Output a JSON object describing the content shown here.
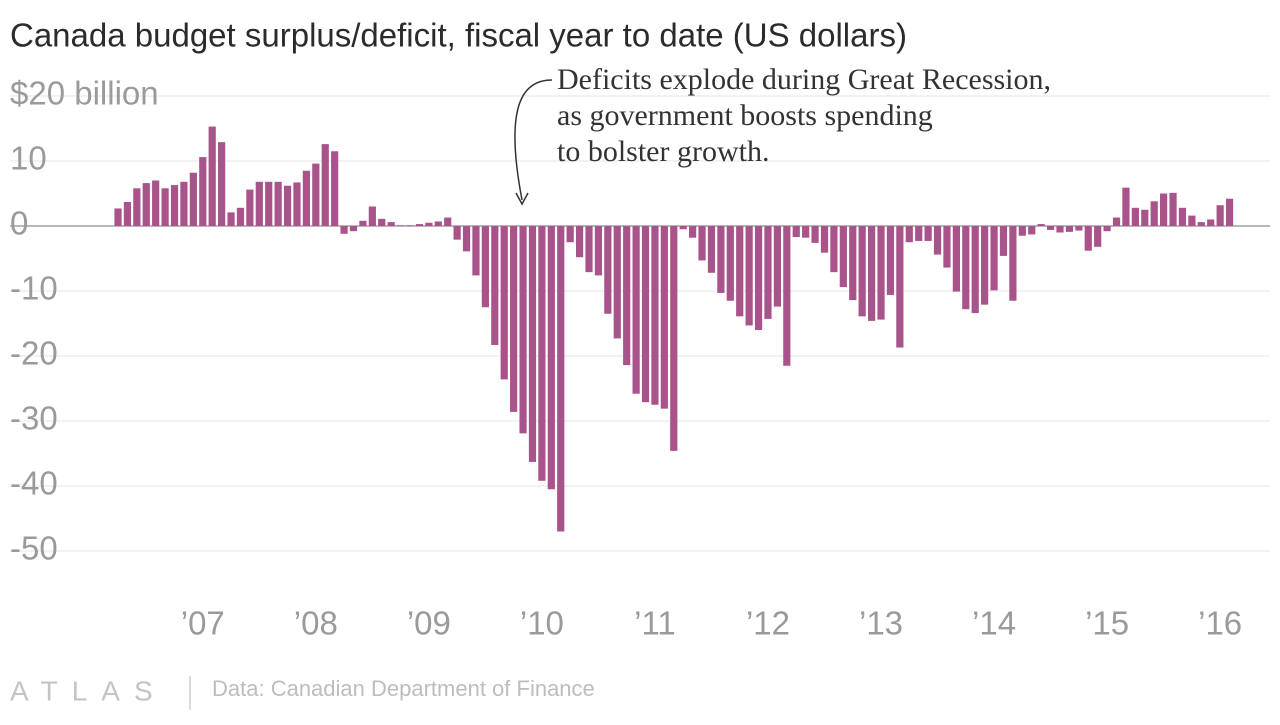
{
  "chart_data": {
    "type": "bar",
    "title": "Canada budget surplus/deficit, fiscal year to date (US dollars)",
    "annotation": [
      "Deficits explode during Great Recession,",
      "as government boosts spending",
      "to bolster growth."
    ],
    "source": "Data: Canadian Department of Finance",
    "logo": "ATLAS",
    "color": "#a9538b",
    "grid": true,
    "ylim": [
      -52,
      20
    ],
    "yticks": [
      {
        "value": 20,
        "label": "$20 billion"
      },
      10,
      0,
      -10,
      -20,
      -30,
      -40,
      -50
    ],
    "categories": [
      null,
      null,
      null,
      null,
      null,
      null,
      null,
      null,
      null,
      "’07",
      null,
      null,
      null,
      null,
      null,
      null,
      null,
      null,
      null,
      null,
      null,
      "’08",
      null,
      null,
      null,
      null,
      null,
      null,
      null,
      null,
      null,
      null,
      null,
      "’09",
      null,
      null,
      null,
      null,
      null,
      null,
      null,
      null,
      null,
      null,
      null,
      "’10",
      null,
      null,
      null,
      null,
      null,
      null,
      null,
      null,
      null,
      null,
      null,
      "’11",
      null,
      null,
      null,
      null,
      null,
      null,
      null,
      null,
      null,
      null,
      null,
      "’12",
      null,
      null,
      null,
      null,
      null,
      null,
      null,
      null,
      null,
      null,
      null,
      "’13",
      null,
      null,
      null,
      null,
      null,
      null,
      null,
      null,
      null,
      null,
      null,
      "’14",
      null,
      null,
      null,
      null,
      null,
      null,
      null,
      null,
      null,
      null,
      null,
      "’15",
      null,
      null,
      null,
      null,
      null,
      null,
      null,
      null,
      null,
      null,
      null,
      "’16",
      null
    ],
    "values": [
      2.7,
      3.7,
      5.8,
      6.6,
      7.0,
      5.8,
      6.3,
      6.8,
      8.2,
      10.6,
      15.3,
      12.9,
      2.1,
      2.8,
      5.6,
      6.8,
      6.8,
      6.8,
      6.2,
      6.7,
      8.5,
      9.6,
      12.6,
      11.5,
      -1.2,
      -0.8,
      0.8,
      3.0,
      1.1,
      0.6,
      0.1,
      0.1,
      0.3,
      0.5,
      0.7,
      1.3,
      -2.1,
      -3.9,
      -7.6,
      -12.5,
      -18.3,
      -23.6,
      -28.6,
      -31.9,
      -36.3,
      -39.2,
      -40.5,
      -47,
      -2.5,
      -4.8,
      -7.1,
      -7.6,
      -13.5,
      -17.3,
      -21.4,
      -25.8,
      -27.1,
      -27.5,
      -28.1,
      -34.6,
      -0.5,
      -1.8,
      -5.3,
      -7.2,
      -10.3,
      -11.5,
      -13.9,
      -15.3,
      -16.0,
      -14.3,
      -12.4,
      -21.5,
      -1.7,
      -1.8,
      -2.6,
      -4.1,
      -7.1,
      -9.4,
      -11.4,
      -13.9,
      -14.6,
      -14.4,
      -10.6,
      -18.7,
      -2.5,
      -2.3,
      -2.3,
      -4.4,
      -6.4,
      -10.1,
      -12.8,
      -13.4,
      -12.1,
      -9.9,
      -4.6,
      -11.5,
      -1.5,
      -1.3,
      0.3,
      -0.6,
      -1.0,
      -0.9,
      -0.7,
      -3.8,
      -3.2,
      -0.8,
      1.3,
      5.9,
      2.8,
      2.5,
      3.8,
      5.0,
      5.1,
      2.8,
      1.6,
      0.6,
      1.0,
      3.2,
      4.2
    ]
  }
}
